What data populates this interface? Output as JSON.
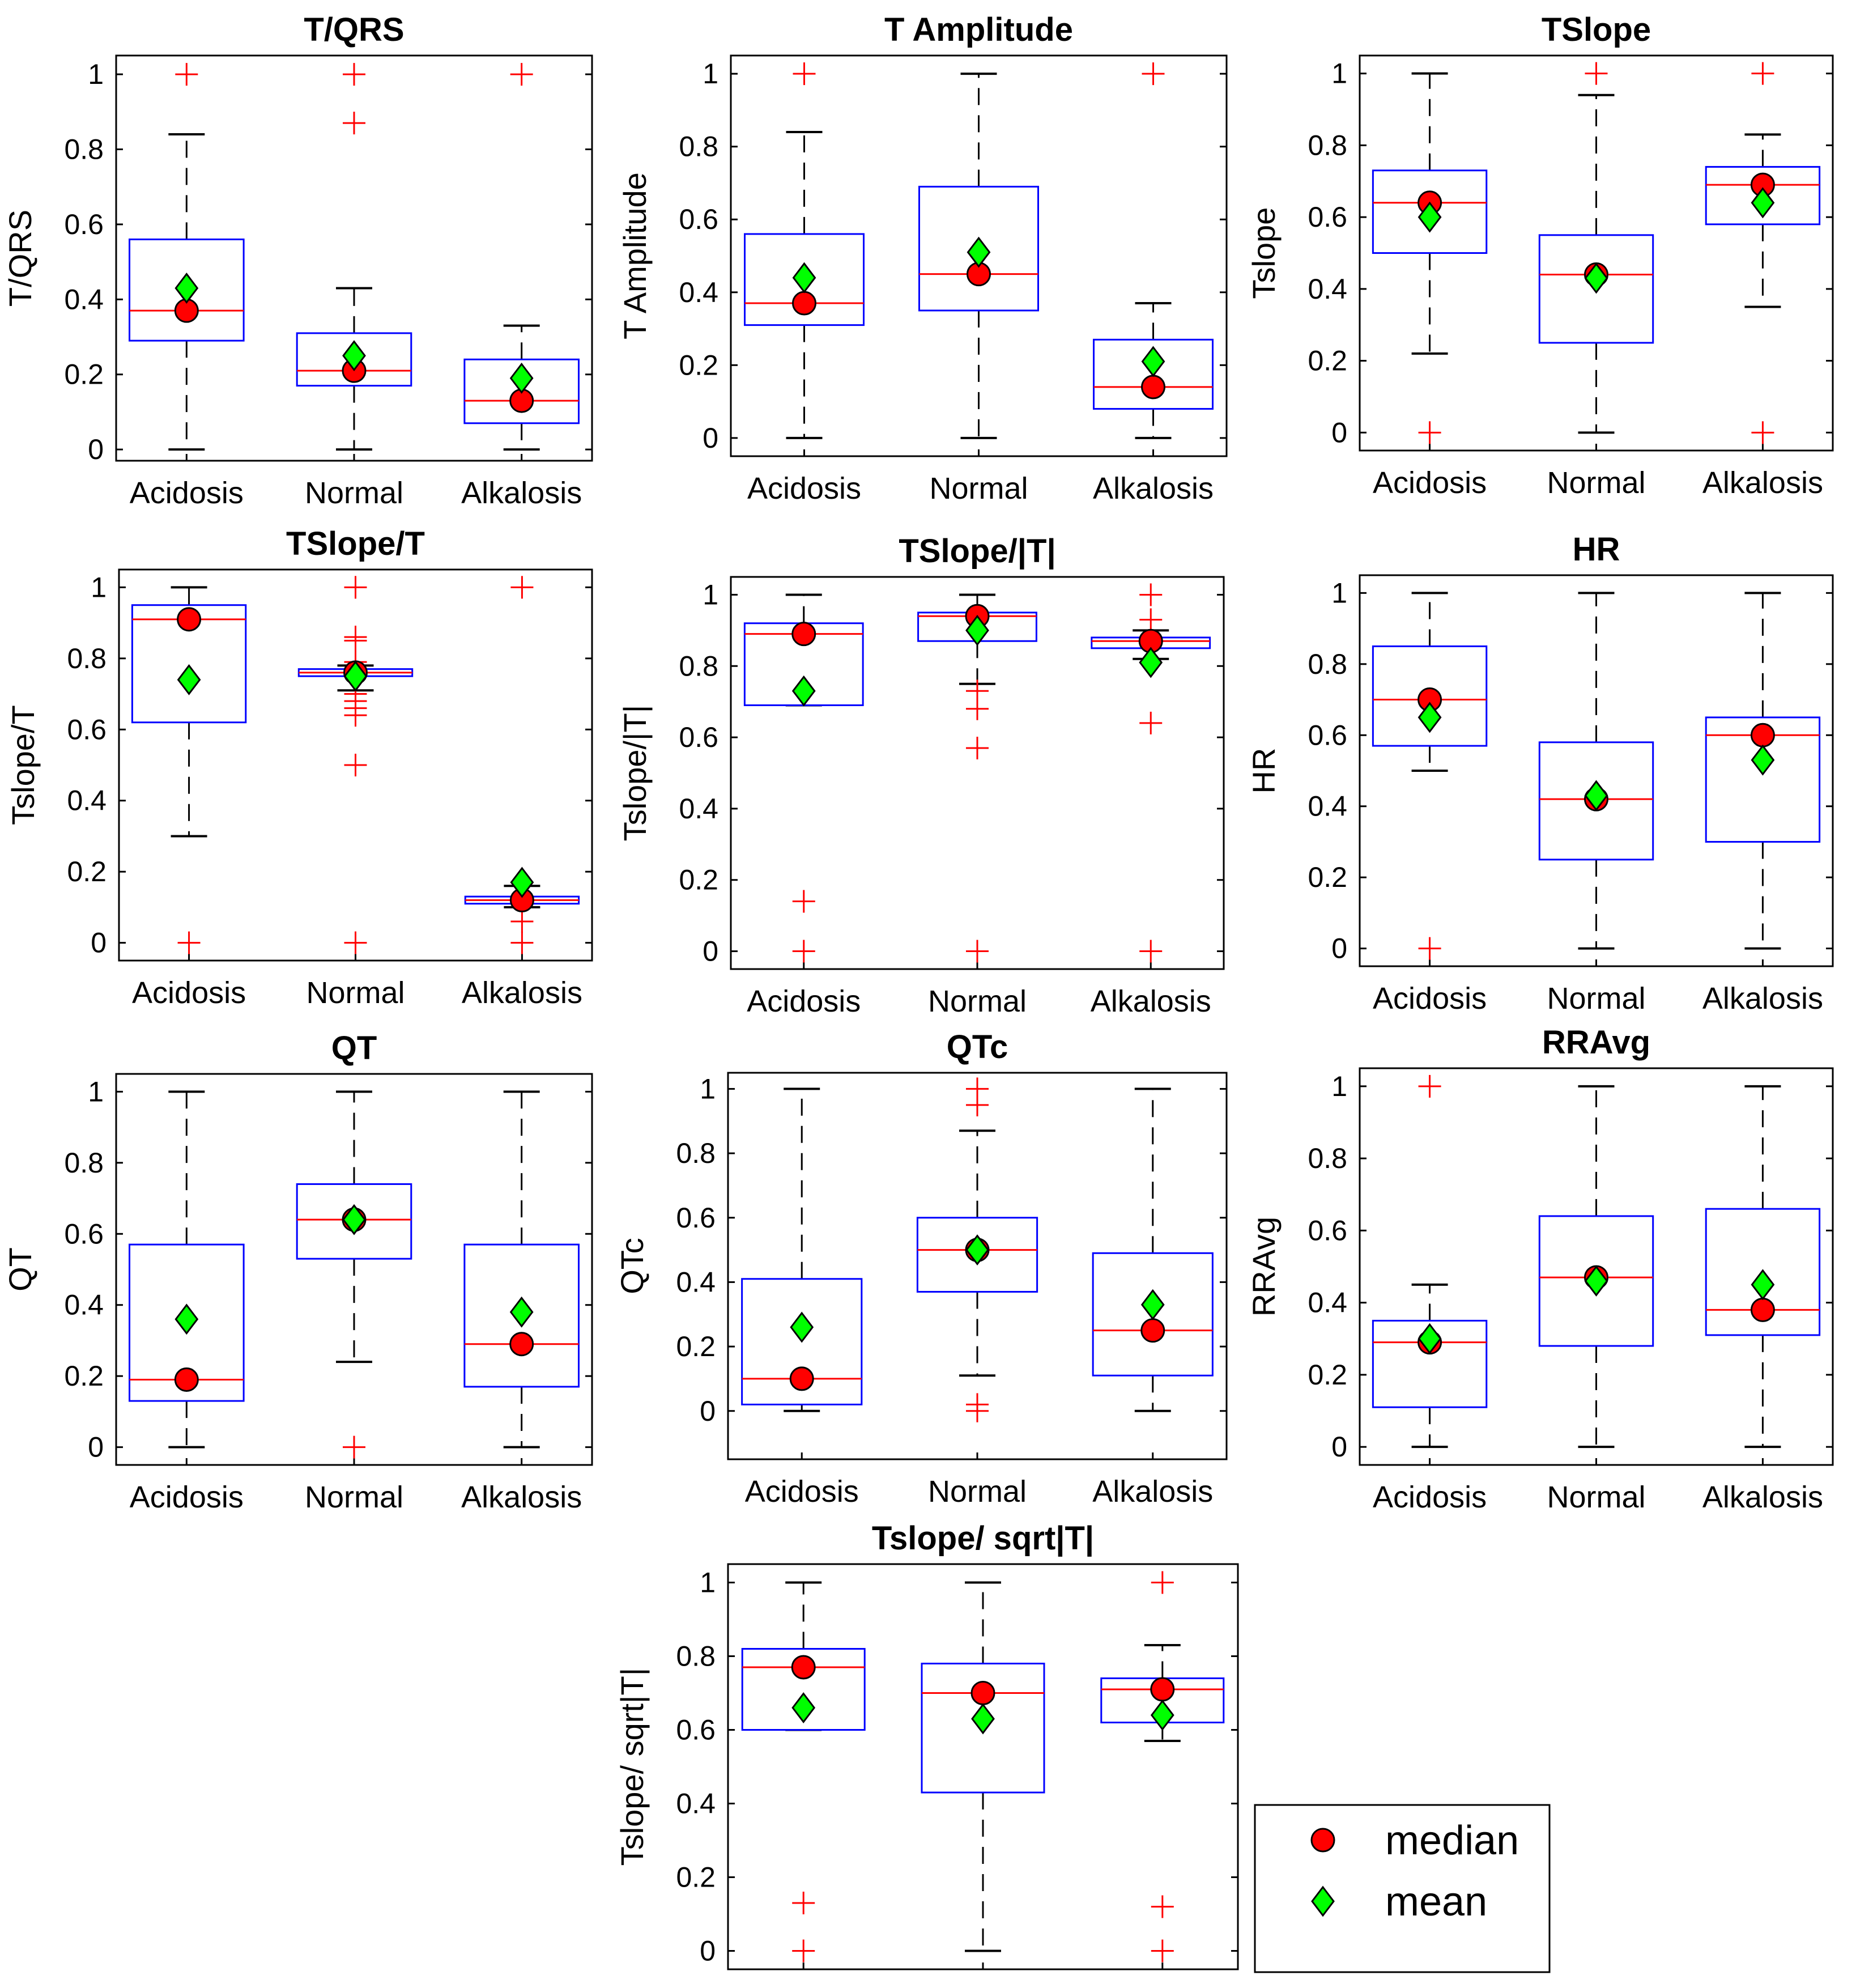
{
  "chart_data": {
    "type": "boxplot",
    "categories": [
      "Acidosis",
      "Normal",
      "Alkalosis"
    ],
    "ylim": [
      0,
      1
    ],
    "yticks": [
      "0",
      "0.2",
      "0.4",
      "0.6",
      "0.8",
      "1"
    ],
    "legend": {
      "position": "bottom-right",
      "entries": [
        {
          "label": "median",
          "marker": "circle",
          "color": "#ff0000"
        },
        {
          "label": "mean",
          "marker": "diamond",
          "color": "#00ff00"
        }
      ]
    },
    "colors": {
      "box": "#0000ff",
      "median_line": "#ff0000",
      "outlier": "#ff0000",
      "whisker": "#000000"
    },
    "panels": [
      {
        "title": "T/QRS",
        "ylabel": "T/QRS",
        "ylim": [
          -0.03,
          1.05
        ],
        "boxes": [
          {
            "category": "Acidosis",
            "q1": 0.29,
            "median": 0.37,
            "q3": 0.56,
            "whisker_low": 0,
            "whisker_high": 0.84,
            "mean": 0.43,
            "outliers": [
              1
            ]
          },
          {
            "category": "Normal",
            "q1": 0.17,
            "median": 0.21,
            "q3": 0.31,
            "whisker_low": 0,
            "whisker_high": 0.43,
            "mean": 0.25,
            "outliers": [
              0.87,
              1
            ]
          },
          {
            "category": "Alkalosis",
            "q1": 0.07,
            "median": 0.13,
            "q3": 0.24,
            "whisker_low": 0,
            "whisker_high": 0.33,
            "mean": 0.19,
            "outliers": [
              1
            ]
          }
        ]
      },
      {
        "title": "T Amplitude",
        "ylabel": "T Amplitude",
        "ylim": [
          -0.05,
          1.05
        ],
        "boxes": [
          {
            "category": "Acidosis",
            "q1": 0.31,
            "median": 0.37,
            "q3": 0.56,
            "whisker_low": 0,
            "whisker_high": 0.84,
            "mean": 0.44,
            "outliers": [
              1
            ]
          },
          {
            "category": "Normal",
            "q1": 0.35,
            "median": 0.45,
            "q3": 0.69,
            "whisker_low": 0,
            "whisker_high": 1,
            "mean": 0.51,
            "outliers": []
          },
          {
            "category": "Alkalosis",
            "q1": 0.08,
            "median": 0.14,
            "q3": 0.27,
            "whisker_low": 0,
            "whisker_high": 0.37,
            "mean": 0.21,
            "outliers": [
              1
            ]
          }
        ]
      },
      {
        "title": "TSlope",
        "ylabel": "Tslope",
        "ylim": [
          -0.05,
          1.05
        ],
        "boxes": [
          {
            "category": "Acidosis",
            "q1": 0.5,
            "median": 0.64,
            "q3": 0.73,
            "whisker_low": 0.22,
            "whisker_high": 1,
            "mean": 0.6,
            "outliers": [
              0
            ]
          },
          {
            "category": "Normal",
            "q1": 0.25,
            "median": 0.44,
            "q3": 0.55,
            "whisker_low": 0,
            "whisker_high": 0.94,
            "mean": 0.43,
            "outliers": [
              1
            ]
          },
          {
            "category": "Alkalosis",
            "q1": 0.58,
            "median": 0.69,
            "q3": 0.74,
            "whisker_low": 0.35,
            "whisker_high": 0.83,
            "mean": 0.64,
            "outliers": [
              0,
              1
            ]
          }
        ]
      },
      {
        "title": "TSlope/T",
        "ylabel": "Tslope/T",
        "ylim": [
          -0.05,
          1.05
        ],
        "boxes": [
          {
            "category": "Acidosis",
            "q1": 0.62,
            "median": 0.91,
            "q3": 0.95,
            "whisker_low": 0.3,
            "whisker_high": 1,
            "mean": 0.74,
            "outliers": [
              0
            ]
          },
          {
            "category": "Normal",
            "q1": 0.75,
            "median": 0.76,
            "q3": 0.77,
            "whisker_low": 0.71,
            "whisker_high": 0.78,
            "mean": 0.75,
            "outliers": [
              0,
              0.5,
              0.64,
              0.66,
              0.68,
              0.7,
              0.79,
              0.85,
              0.86,
              1
            ]
          },
          {
            "category": "Alkalosis",
            "q1": 0.11,
            "median": 0.12,
            "q3": 0.13,
            "whisker_low": 0.1,
            "whisker_high": 0.16,
            "mean": 0.17,
            "outliers": [
              0,
              0.06,
              1
            ]
          }
        ]
      },
      {
        "title": "TSlope/|T|",
        "ylabel": "Tslope/|T|",
        "ylim": [
          -0.05,
          1.05
        ],
        "boxes": [
          {
            "category": "Acidosis",
            "q1": 0.69,
            "median": 0.89,
            "q3": 0.92,
            "whisker_low": 0.69,
            "whisker_high": 1,
            "mean": 0.73,
            "outliers": [
              0,
              0.14
            ]
          },
          {
            "category": "Normal",
            "q1": 0.87,
            "median": 0.94,
            "q3": 0.95,
            "whisker_low": 0.75,
            "whisker_high": 1,
            "mean": 0.9,
            "outliers": [
              0,
              0.57,
              0.68,
              0.73
            ]
          },
          {
            "category": "Alkalosis",
            "q1": 0.85,
            "median": 0.87,
            "q3": 0.88,
            "whisker_low": 0.82,
            "whisker_high": 0.9,
            "mean": 0.81,
            "outliers": [
              0,
              0.64,
              0.93,
              1
            ]
          }
        ]
      },
      {
        "title": "HR",
        "ylabel": "HR",
        "ylim": [
          -0.05,
          1.05
        ],
        "boxes": [
          {
            "category": "Acidosis",
            "q1": 0.57,
            "median": 0.7,
            "q3": 0.85,
            "whisker_low": 0.5,
            "whisker_high": 1,
            "mean": 0.65,
            "outliers": [
              0
            ]
          },
          {
            "category": "Normal",
            "q1": 0.25,
            "median": 0.42,
            "q3": 0.58,
            "whisker_low": 0,
            "whisker_high": 1,
            "mean": 0.43,
            "outliers": []
          },
          {
            "category": "Alkalosis",
            "q1": 0.3,
            "median": 0.6,
            "q3": 0.65,
            "whisker_low": 0,
            "whisker_high": 1,
            "mean": 0.53,
            "outliers": []
          }
        ]
      },
      {
        "title": "QT",
        "ylabel": "QT",
        "ylim": [
          -0.05,
          1.05
        ],
        "boxes": [
          {
            "category": "Acidosis",
            "q1": 0.13,
            "median": 0.19,
            "q3": 0.57,
            "whisker_low": 0,
            "whisker_high": 1,
            "mean": 0.36,
            "outliers": []
          },
          {
            "category": "Normal",
            "q1": 0.53,
            "median": 0.64,
            "q3": 0.74,
            "whisker_low": 0.24,
            "whisker_high": 1,
            "mean": 0.64,
            "outliers": [
              0
            ]
          },
          {
            "category": "Alkalosis",
            "q1": 0.17,
            "median": 0.29,
            "q3": 0.57,
            "whisker_low": 0,
            "whisker_high": 1,
            "mean": 0.38,
            "outliers": []
          }
        ]
      },
      {
        "title": "QTc",
        "ylabel": "QTc",
        "ylim": [
          -0.15,
          1.05
        ],
        "boxes": [
          {
            "category": "Acidosis",
            "q1": 0.02,
            "median": 0.1,
            "q3": 0.41,
            "whisker_low": 0,
            "whisker_high": 1,
            "mean": 0.26,
            "outliers": []
          },
          {
            "category": "Normal",
            "q1": 0.37,
            "median": 0.5,
            "q3": 0.6,
            "whisker_low": 0.11,
            "whisker_high": 0.87,
            "mean": 0.5,
            "outliers": [
              0,
              0.02,
              0.95,
              1
            ]
          },
          {
            "category": "Alkalosis",
            "q1": 0.11,
            "median": 0.25,
            "q3": 0.49,
            "whisker_low": 0,
            "whisker_high": 1,
            "mean": 0.33,
            "outliers": []
          }
        ]
      },
      {
        "title": "RRAvg",
        "ylabel": "RRAvg",
        "ylim": [
          -0.05,
          1.05
        ],
        "boxes": [
          {
            "category": "Acidosis",
            "q1": 0.11,
            "median": 0.29,
            "q3": 0.35,
            "whisker_low": 0,
            "whisker_high": 0.45,
            "mean": 0.3,
            "outliers": [
              1
            ]
          },
          {
            "category": "Normal",
            "q1": 0.28,
            "median": 0.47,
            "q3": 0.64,
            "whisker_low": 0,
            "whisker_high": 1,
            "mean": 0.46,
            "outliers": []
          },
          {
            "category": "Alkalosis",
            "q1": 0.31,
            "median": 0.38,
            "q3": 0.66,
            "whisker_low": 0,
            "whisker_high": 1,
            "mean": 0.45,
            "outliers": []
          }
        ]
      },
      {
        "title": "Tslope/ sqrt|T|",
        "ylabel": "Tslope/ sqrt|T|",
        "ylim": [
          -0.05,
          1.05
        ],
        "boxes": [
          {
            "category": "Acidosis",
            "q1": 0.6,
            "median": 0.77,
            "q3": 0.82,
            "whisker_low": 0.6,
            "whisker_high": 1,
            "mean": 0.66,
            "outliers": [
              0,
              0.13
            ]
          },
          {
            "category": "Normal",
            "q1": 0.43,
            "median": 0.7,
            "q3": 0.78,
            "whisker_low": 0,
            "whisker_high": 1,
            "mean": 0.63,
            "outliers": []
          },
          {
            "category": "Alkalosis",
            "q1": 0.62,
            "median": 0.71,
            "q3": 0.74,
            "whisker_low": 0.57,
            "whisker_high": 0.83,
            "mean": 0.64,
            "outliers": [
              0,
              0.12,
              1
            ]
          }
        ]
      }
    ]
  }
}
